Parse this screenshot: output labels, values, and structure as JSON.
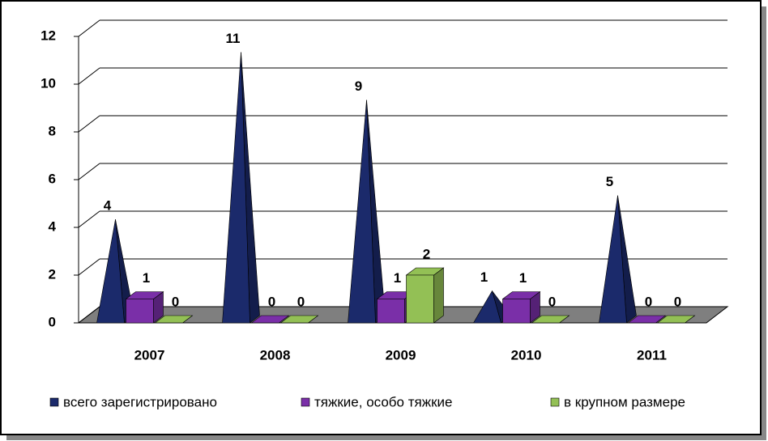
{
  "chart_data": {
    "type": "bar3d",
    "categories": [
      "2007",
      "2008",
      "2009",
      "2010",
      "2011"
    ],
    "series": [
      {
        "name": "всего зарегистрировано",
        "color": "#1b2a6b",
        "shape": "pyramid",
        "values": [
          4,
          11,
          9,
          1,
          5
        ]
      },
      {
        "name": "тяжкие, особо тяжкие",
        "color": "#7a2fa8",
        "shape": "box",
        "values": [
          1,
          0,
          1,
          1,
          0
        ]
      },
      {
        "name": "в крупном размере",
        "color": "#93c055",
        "shape": "box",
        "values": [
          0,
          0,
          2,
          0,
          0
        ]
      }
    ],
    "ylim": [
      0,
      12
    ],
    "yticks": [
      0,
      2,
      4,
      6,
      8,
      10,
      12
    ],
    "grid": true,
    "legend": "bottom"
  }
}
